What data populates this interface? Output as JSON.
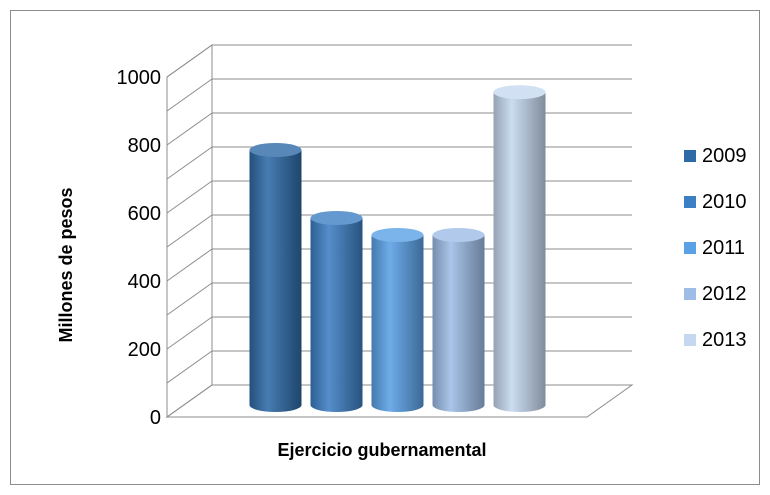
{
  "chart_data": {
    "type": "bar",
    "style": "3d-cylinder",
    "xlabel": "Ejercicio gubernamental",
    "ylabel": "Millones de pesos",
    "ylim": [
      0,
      1000
    ],
    "yticks": [
      "0",
      "200",
      "400",
      "600",
      "800",
      "1000"
    ],
    "grid": true,
    "legend_position": "right",
    "series": [
      {
        "name": "2009",
        "value": 750,
        "color": "#2e6aa6"
      },
      {
        "name": "2010",
        "value": 550,
        "color": "#3d7fc4"
      },
      {
        "name": "2011",
        "value": 500,
        "color": "#5aa1e6"
      },
      {
        "name": "2012",
        "value": 500,
        "color": "#9dbde6"
      },
      {
        "name": "2013",
        "value": 920,
        "color": "#c5d8ef"
      }
    ]
  }
}
